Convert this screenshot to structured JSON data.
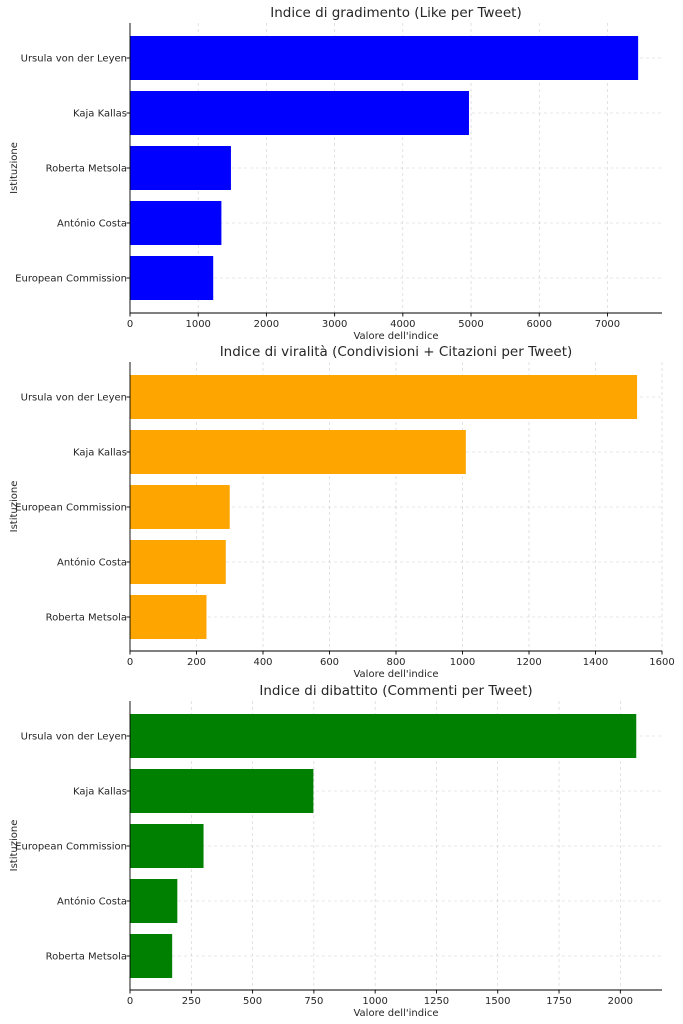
{
  "chart_data": [
    {
      "type": "bar",
      "orientation": "horizontal",
      "title": "Indice di gradimento (Like per Tweet)",
      "xlabel": "Valore dell'indice",
      "ylabel": "Istituzione",
      "categories": [
        "Ursula von der Leyen",
        "Kaja Kallas",
        "Roberta Metsola",
        "António Costa",
        "European Commission"
      ],
      "values": [
        7450,
        4970,
        1480,
        1340,
        1220
      ],
      "xlim": [
        0,
        7800
      ],
      "xticks": [
        0,
        1000,
        2000,
        3000,
        4000,
        5000,
        6000,
        7000
      ],
      "color": "#0000ff",
      "grid": true
    },
    {
      "type": "bar",
      "orientation": "horizontal",
      "title": "Indice di viralità (Condivisioni + Citazioni per Tweet)",
      "xlabel": "Valore dell'indice",
      "ylabel": "Istituzione",
      "categories": [
        "Ursula von der Leyen",
        "Kaja Kallas",
        "European Commission",
        "António Costa",
        "Roberta Metsola"
      ],
      "values": [
        1525,
        1010,
        300,
        288,
        230
      ],
      "xlim": [
        0,
        1600
      ],
      "xticks": [
        0,
        200,
        400,
        600,
        800,
        1000,
        1200,
        1400,
        1600
      ],
      "color": "#ffa500",
      "grid": true
    },
    {
      "type": "bar",
      "orientation": "horizontal",
      "title": "Indice di dibattito (Commenti per Tweet)",
      "xlabel": "Valore dell'indice",
      "ylabel": "Istituzione",
      "categories": [
        "Ursula von der Leyen",
        "Kaja Kallas",
        "European Commission",
        "António Costa",
        "Roberta Metsola"
      ],
      "values": [
        2065,
        748,
        300,
        193,
        172
      ],
      "xlim": [
        0,
        2170
      ],
      "xticks": [
        0,
        250,
        500,
        750,
        1000,
        1250,
        1500,
        1750,
        2000
      ],
      "color": "#008000",
      "grid": true
    }
  ]
}
